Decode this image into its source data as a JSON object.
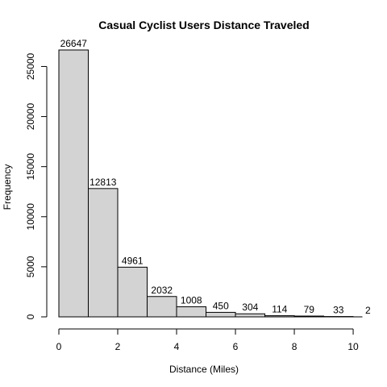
{
  "chart_data": {
    "type": "bar",
    "title": "Casual Cyclist Users Distance Traveled",
    "xlabel": "Distance (Miles)",
    "ylabel": "Frequency",
    "bins": [
      {
        "start": 0,
        "end": 1,
        "value": 26647,
        "label": "26647"
      },
      {
        "start": 1,
        "end": 2,
        "value": 12813,
        "label": "12813"
      },
      {
        "start": 2,
        "end": 3,
        "value": 4961,
        "label": "4961"
      },
      {
        "start": 3,
        "end": 4,
        "value": 2032,
        "label": "2032"
      },
      {
        "start": 4,
        "end": 5,
        "value": 1008,
        "label": "1008"
      },
      {
        "start": 5,
        "end": 6,
        "value": 450,
        "label": "450"
      },
      {
        "start": 6,
        "end": 7,
        "value": 304,
        "label": "304"
      },
      {
        "start": 7,
        "end": 8,
        "value": 114,
        "label": "114"
      },
      {
        "start": 8,
        "end": 9,
        "value": 79,
        "label": "79"
      },
      {
        "start": 9,
        "end": 10,
        "value": 33,
        "label": "33"
      },
      {
        "start": 10,
        "end": 11,
        "value": 2,
        "label": "2"
      }
    ],
    "x_ticks": [
      0,
      2,
      4,
      6,
      8,
      10
    ],
    "y_ticks": [
      0,
      5000,
      10000,
      15000,
      20000,
      25000
    ],
    "xlim": [
      0,
      10.3
    ],
    "ylim": [
      0,
      27000
    ],
    "grid": false,
    "legend": "none",
    "bar_color": "#d3d3d3"
  }
}
